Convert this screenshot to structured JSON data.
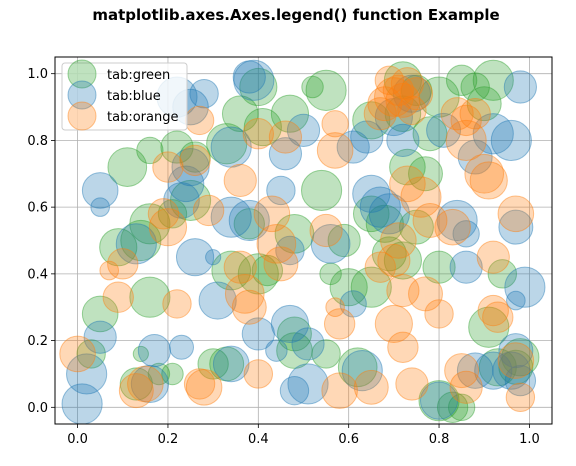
{
  "chart_data": {
    "type": "scatter",
    "title": "matplotlib.axes.Axes.legend() function Example",
    "xlabel": "",
    "ylabel": "",
    "xlim": [
      -0.05,
      1.05
    ],
    "ylim": [
      -0.05,
      1.05
    ],
    "xticks": [
      "0.0",
      "0.2",
      "0.4",
      "0.6",
      "0.8",
      "1.0"
    ],
    "yticks": [
      "0.0",
      "0.2",
      "0.4",
      "0.6",
      "0.8",
      "1.0"
    ],
    "grid": true,
    "legend_position": "upper-left",
    "series": [
      {
        "name": "tab:green",
        "color": "#2ca02c",
        "points": [
          {
            "x": 0.85,
            "y": 0.98,
            "s": 40
          },
          {
            "x": 0.92,
            "y": 0.98,
            "s": 70
          },
          {
            "x": 0.9,
            "y": 0.91,
            "s": 50
          },
          {
            "x": 0.72,
            "y": 0.98,
            "s": 60
          },
          {
            "x": 0.55,
            "y": 0.95,
            "s": 70
          },
          {
            "x": 0.4,
            "y": 0.96,
            "s": 60
          },
          {
            "x": 0.36,
            "y": 0.88,
            "s": 55
          },
          {
            "x": 0.41,
            "y": 0.84,
            "s": 60
          },
          {
            "x": 0.47,
            "y": 0.88,
            "s": 60
          },
          {
            "x": 0.52,
            "y": 0.96,
            "s": 20
          },
          {
            "x": 0.11,
            "y": 0.72,
            "s": 65
          },
          {
            "x": 0.16,
            "y": 0.77,
            "s": 30
          },
          {
            "x": 0.22,
            "y": 0.78,
            "s": 45
          },
          {
            "x": 0.26,
            "y": 0.75,
            "s": 40
          },
          {
            "x": 0.33,
            "y": 0.79,
            "s": 70
          },
          {
            "x": 0.65,
            "y": 0.86,
            "s": 60
          },
          {
            "x": 0.72,
            "y": 0.88,
            "s": 55
          },
          {
            "x": 0.78,
            "y": 0.82,
            "s": 50
          },
          {
            "x": 0.8,
            "y": 0.93,
            "s": 70
          },
          {
            "x": 0.77,
            "y": 0.7,
            "s": 50
          },
          {
            "x": 0.73,
            "y": 0.72,
            "s": 55
          },
          {
            "x": 0.54,
            "y": 0.65,
            "s": 70
          },
          {
            "x": 0.48,
            "y": 0.52,
            "s": 65
          },
          {
            "x": 0.38,
            "y": 0.55,
            "s": 40
          },
          {
            "x": 0.4,
            "y": 0.4,
            "s": 70
          },
          {
            "x": 0.34,
            "y": 0.41,
            "s": 65
          },
          {
            "x": 0.42,
            "y": 0.41,
            "s": 40
          },
          {
            "x": 0.09,
            "y": 0.48,
            "s": 60
          },
          {
            "x": 0.14,
            "y": 0.5,
            "s": 70
          },
          {
            "x": 0.16,
            "y": 0.55,
            "s": 70
          },
          {
            "x": 0.21,
            "y": 0.58,
            "s": 35
          },
          {
            "x": 0.25,
            "y": 0.62,
            "s": 70
          },
          {
            "x": 0.59,
            "y": 0.5,
            "s": 45
          },
          {
            "x": 0.65,
            "y": 0.58,
            "s": 55
          },
          {
            "x": 0.68,
            "y": 0.55,
            "s": 60
          },
          {
            "x": 0.69,
            "y": 0.46,
            "s": 50
          },
          {
            "x": 0.72,
            "y": 0.44,
            "s": 60
          },
          {
            "x": 0.8,
            "y": 0.42,
            "s": 45
          },
          {
            "x": 0.75,
            "y": 0.54,
            "s": 50
          },
          {
            "x": 0.6,
            "y": 0.36,
            "s": 60
          },
          {
            "x": 0.65,
            "y": 0.36,
            "s": 70
          },
          {
            "x": 0.56,
            "y": 0.4,
            "s": 20
          },
          {
            "x": 0.16,
            "y": 0.33,
            "s": 70
          },
          {
            "x": 0.05,
            "y": 0.28,
            "s": 55
          },
          {
            "x": 0.03,
            "y": 0.16,
            "s": 35
          },
          {
            "x": 0.91,
            "y": 0.24,
            "s": 70
          },
          {
            "x": 0.94,
            "y": 0.4,
            "s": 35
          },
          {
            "x": 0.98,
            "y": 0.15,
            "s": 60
          },
          {
            "x": 0.97,
            "y": 0.12,
            "s": 50
          },
          {
            "x": 0.93,
            "y": 0.12,
            "s": 60
          },
          {
            "x": 0.48,
            "y": 0.22,
            "s": 50
          },
          {
            "x": 0.48,
            "y": 0.17,
            "s": 55
          },
          {
            "x": 0.62,
            "y": 0.12,
            "s": 65
          },
          {
            "x": 0.55,
            "y": 0.16,
            "s": 35
          },
          {
            "x": 0.3,
            "y": 0.13,
            "s": 40
          },
          {
            "x": 0.33,
            "y": 0.13,
            "s": 50
          },
          {
            "x": 0.13,
            "y": 0.07,
            "s": 45
          },
          {
            "x": 0.21,
            "y": 0.1,
            "s": 20
          },
          {
            "x": 0.18,
            "y": 0.1,
            "s": 20
          },
          {
            "x": 0.14,
            "y": 0.16,
            "s": 10
          },
          {
            "x": 0.8,
            "y": 0.02,
            "s": 70
          },
          {
            "x": 0.83,
            "y": 0.0,
            "s": 40
          },
          {
            "x": 0.85,
            "y": 0.0,
            "s": 30
          },
          {
            "x": 0.88,
            "y": 0.96,
            "s": 35
          },
          {
            "x": 0.75,
            "y": 0.95,
            "s": 40
          }
        ]
      },
      {
        "name": "tab:blue",
        "color": "#1f77b4",
        "points": [
          {
            "x": 0.22,
            "y": 0.93,
            "s": 70
          },
          {
            "x": 0.25,
            "y": 0.9,
            "s": 55
          },
          {
            "x": 0.28,
            "y": 0.94,
            "s": 35
          },
          {
            "x": 0.38,
            "y": 0.99,
            "s": 45
          },
          {
            "x": 0.39,
            "y": 0.98,
            "s": 70
          },
          {
            "x": 0.74,
            "y": 0.94,
            "s": 60
          },
          {
            "x": 0.7,
            "y": 0.87,
            "s": 60
          },
          {
            "x": 0.64,
            "y": 0.81,
            "s": 45
          },
          {
            "x": 0.81,
            "y": 0.83,
            "s": 50
          },
          {
            "x": 0.88,
            "y": 0.75,
            "s": 50
          },
          {
            "x": 0.92,
            "y": 0.82,
            "s": 70
          },
          {
            "x": 0.96,
            "y": 0.8,
            "s": 70
          },
          {
            "x": 0.98,
            "y": 0.96,
            "s": 45
          },
          {
            "x": 0.5,
            "y": 0.83,
            "s": 45
          },
          {
            "x": 0.46,
            "y": 0.76,
            "s": 45
          },
          {
            "x": 0.34,
            "y": 0.78,
            "s": 70
          },
          {
            "x": 0.25,
            "y": 0.72,
            "s": 60
          },
          {
            "x": 0.24,
            "y": 0.67,
            "s": 55
          },
          {
            "x": 0.23,
            "y": 0.62,
            "s": 55
          },
          {
            "x": 0.05,
            "y": 0.65,
            "s": 55
          },
          {
            "x": 0.05,
            "y": 0.6,
            "s": 15
          },
          {
            "x": 0.45,
            "y": 0.65,
            "s": 35
          },
          {
            "x": 0.65,
            "y": 0.64,
            "s": 60
          },
          {
            "x": 0.67,
            "y": 0.6,
            "s": 70
          },
          {
            "x": 0.69,
            "y": 0.58,
            "s": 70
          },
          {
            "x": 0.84,
            "y": 0.56,
            "s": 70
          },
          {
            "x": 0.86,
            "y": 0.52,
            "s": 30
          },
          {
            "x": 0.97,
            "y": 0.54,
            "s": 50
          },
          {
            "x": 0.56,
            "y": 0.49,
            "s": 65
          },
          {
            "x": 0.38,
            "y": 0.56,
            "s": 70
          },
          {
            "x": 0.34,
            "y": 0.57,
            "s": 70
          },
          {
            "x": 0.47,
            "y": 0.47,
            "s": 35
          },
          {
            "x": 0.13,
            "y": 0.49,
            "s": 70
          },
          {
            "x": 0.26,
            "y": 0.45,
            "s": 60
          },
          {
            "x": 0.3,
            "y": 0.45,
            "s": 10
          },
          {
            "x": 0.86,
            "y": 0.42,
            "s": 45
          },
          {
            "x": 0.97,
            "y": 0.32,
            "s": 15
          },
          {
            "x": 0.99,
            "y": 0.36,
            "s": 70
          },
          {
            "x": 0.31,
            "y": 0.32,
            "s": 60
          },
          {
            "x": 0.4,
            "y": 0.22,
            "s": 45
          },
          {
            "x": 0.47,
            "y": 0.25,
            "s": 60
          },
          {
            "x": 0.51,
            "y": 0.19,
            "s": 45
          },
          {
            "x": 0.44,
            "y": 0.17,
            "s": 20
          },
          {
            "x": 0.05,
            "y": 0.21,
            "s": 45
          },
          {
            "x": 0.17,
            "y": 0.17,
            "s": 45
          },
          {
            "x": 0.23,
            "y": 0.18,
            "s": 25
          },
          {
            "x": 0.34,
            "y": 0.13,
            "s": 55
          },
          {
            "x": 0.02,
            "y": 0.1,
            "s": 70
          },
          {
            "x": 0.01,
            "y": 0.01,
            "s": 70
          },
          {
            "x": 0.16,
            "y": 0.07,
            "s": 60
          },
          {
            "x": 0.51,
            "y": 0.07,
            "s": 70
          },
          {
            "x": 0.48,
            "y": 0.05,
            "s": 35
          },
          {
            "x": 0.63,
            "y": 0.11,
            "s": 70
          },
          {
            "x": 0.8,
            "y": 0.02,
            "s": 60
          },
          {
            "x": 0.88,
            "y": 0.11,
            "s": 55
          },
          {
            "x": 0.92,
            "y": 0.11,
            "s": 60
          },
          {
            "x": 0.96,
            "y": 0.11,
            "s": 60
          },
          {
            "x": 0.97,
            "y": 0.17,
            "s": 50
          },
          {
            "x": 0.98,
            "y": 0.08,
            "s": 40
          },
          {
            "x": 0.61,
            "y": 0.31,
            "s": 30
          },
          {
            "x": 0.61,
            "y": 0.78,
            "s": 45
          },
          {
            "x": 0.72,
            "y": 0.8,
            "s": 45
          }
        ]
      },
      {
        "name": "tab:orange",
        "color": "#ff7f0e",
        "points": [
          {
            "x": 0.7,
            "y": 0.93,
            "s": 65
          },
          {
            "x": 0.72,
            "y": 0.92,
            "s": 50
          },
          {
            "x": 0.71,
            "y": 0.95,
            "s": 40
          },
          {
            "x": 0.73,
            "y": 0.97,
            "s": 45
          },
          {
            "x": 0.69,
            "y": 0.98,
            "s": 35
          },
          {
            "x": 0.75,
            "y": 0.94,
            "s": 45
          },
          {
            "x": 0.68,
            "y": 0.91,
            "s": 50
          },
          {
            "x": 0.67,
            "y": 0.88,
            "s": 45
          },
          {
            "x": 0.74,
            "y": 0.89,
            "s": 35
          },
          {
            "x": 0.86,
            "y": 0.8,
            "s": 70
          },
          {
            "x": 0.88,
            "y": 0.88,
            "s": 40
          },
          {
            "x": 0.86,
            "y": 0.86,
            "s": 40
          },
          {
            "x": 0.9,
            "y": 0.7,
            "s": 65
          },
          {
            "x": 0.91,
            "y": 0.68,
            "s": 60
          },
          {
            "x": 0.57,
            "y": 0.77,
            "s": 55
          },
          {
            "x": 0.57,
            "y": 0.85,
            "s": 30
          },
          {
            "x": 0.46,
            "y": 0.81,
            "s": 45
          },
          {
            "x": 0.36,
            "y": 0.68,
            "s": 45
          },
          {
            "x": 0.4,
            "y": 0.82,
            "s": 40
          },
          {
            "x": 0.27,
            "y": 0.86,
            "s": 35
          },
          {
            "x": 0.2,
            "y": 0.72,
            "s": 40
          },
          {
            "x": 0.26,
            "y": 0.74,
            "s": 40
          },
          {
            "x": 0.2,
            "y": 0.54,
            "s": 60
          },
          {
            "x": 0.19,
            "y": 0.58,
            "s": 40
          },
          {
            "x": 0.29,
            "y": 0.59,
            "s": 40
          },
          {
            "x": 0.43,
            "y": 0.58,
            "s": 55
          },
          {
            "x": 0.44,
            "y": 0.49,
            "s": 65
          },
          {
            "x": 0.45,
            "y": 0.43,
            "s": 50
          },
          {
            "x": 0.36,
            "y": 0.42,
            "s": 45
          },
          {
            "x": 0.37,
            "y": 0.34,
            "s": 65
          },
          {
            "x": 0.38,
            "y": 0.3,
            "s": 50
          },
          {
            "x": 0.55,
            "y": 0.53,
            "s": 45
          },
          {
            "x": 0.73,
            "y": 0.67,
            "s": 55
          },
          {
            "x": 0.76,
            "y": 0.63,
            "s": 70
          },
          {
            "x": 0.78,
            "y": 0.56,
            "s": 50
          },
          {
            "x": 0.71,
            "y": 0.5,
            "s": 55
          },
          {
            "x": 0.7,
            "y": 0.44,
            "s": 45
          },
          {
            "x": 0.72,
            "y": 0.35,
            "s": 45
          },
          {
            "x": 0.77,
            "y": 0.34,
            "s": 50
          },
          {
            "x": 0.67,
            "y": 0.42,
            "s": 40
          },
          {
            "x": 0.83,
            "y": 0.54,
            "s": 55
          },
          {
            "x": 0.97,
            "y": 0.58,
            "s": 55
          },
          {
            "x": 0.92,
            "y": 0.45,
            "s": 45
          },
          {
            "x": 0.92,
            "y": 0.29,
            "s": 40
          },
          {
            "x": 0.93,
            "y": 0.27,
            "s": 40
          },
          {
            "x": 0.7,
            "y": 0.25,
            "s": 60
          },
          {
            "x": 0.8,
            "y": 0.28,
            "s": 35
          },
          {
            "x": 0.1,
            "y": 0.43,
            "s": 40
          },
          {
            "x": 0.09,
            "y": 0.33,
            "s": 40
          },
          {
            "x": 0.07,
            "y": 0.41,
            "s": 15
          },
          {
            "x": 0.22,
            "y": 0.31,
            "s": 35
          },
          {
            "x": 0.0,
            "y": 0.16,
            "s": 55
          },
          {
            "x": 0.57,
            "y": 0.3,
            "s": 15
          },
          {
            "x": 0.58,
            "y": 0.25,
            "s": 40
          },
          {
            "x": 0.65,
            "y": 0.06,
            "s": 50
          },
          {
            "x": 0.58,
            "y": 0.05,
            "s": 55
          },
          {
            "x": 0.74,
            "y": 0.07,
            "s": 45
          },
          {
            "x": 0.72,
            "y": 0.18,
            "s": 40
          },
          {
            "x": 0.85,
            "y": 0.11,
            "s": 50
          },
          {
            "x": 0.86,
            "y": 0.06,
            "s": 45
          },
          {
            "x": 0.4,
            "y": 0.1,
            "s": 35
          },
          {
            "x": 0.28,
            "y": 0.06,
            "s": 55
          },
          {
            "x": 0.27,
            "y": 0.07,
            "s": 40
          },
          {
            "x": 0.13,
            "y": 0.05,
            "s": 50
          },
          {
            "x": 0.15,
            "y": 0.07,
            "s": 55
          },
          {
            "x": 0.98,
            "y": 0.03,
            "s": 35
          },
          {
            "x": 0.97,
            "y": 0.14,
            "s": 55
          },
          {
            "x": 0.84,
            "y": 0.88,
            "s": 45
          }
        ]
      }
    ]
  }
}
